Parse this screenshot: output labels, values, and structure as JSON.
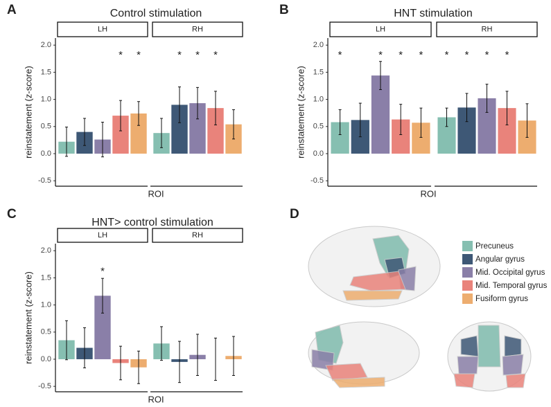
{
  "chart_data": [
    {
      "type": "bar",
      "panel": "A",
      "title": "Control stimulation",
      "ylabel": "reinstatement (z-score)",
      "xlabel": "ROI",
      "ylim": [
        -0.6,
        2.13
      ],
      "yticks": [
        -0.5,
        {
          "value": 0,
          "label": "0.0"
        },
        0.5,
        {
          "value": 1,
          "label": "1.0"
        },
        1.5,
        {
          "value": 2,
          "label": "2.0"
        }
      ],
      "facets": [
        {
          "name": "LH",
          "values": [
            0.22,
            0.4,
            0.26,
            0.7,
            0.74
          ],
          "errors": [
            0.27,
            0.25,
            0.32,
            0.28,
            0.22
          ],
          "stars": [
            null,
            null,
            null,
            "*",
            "*"
          ]
        },
        {
          "name": "RH",
          "values": [
            0.38,
            0.9,
            0.93,
            0.84,
            0.54
          ],
          "errors": [
            0.27,
            0.33,
            0.29,
            0.31,
            0.27
          ],
          "stars": [
            null,
            "*",
            "*",
            "*",
            null
          ]
        }
      ]
    },
    {
      "type": "bar",
      "panel": "B",
      "title": "HNT stimulation",
      "ylabel": "reinstatement (z-score)",
      "xlabel": "ROI",
      "ylim": [
        -0.6,
        2.13
      ],
      "yticks": [
        -0.5,
        {
          "value": 0,
          "label": "0.0"
        },
        0.5,
        {
          "value": 1,
          "label": "1.0"
        },
        1.5,
        {
          "value": 2,
          "label": "2.0"
        }
      ],
      "facets": [
        {
          "name": "LH",
          "values": [
            0.58,
            0.62,
            1.44,
            0.63,
            0.57
          ],
          "errors": [
            0.23,
            0.31,
            0.26,
            0.28,
            0.27
          ],
          "stars": [
            "*",
            null,
            "*",
            "*",
            "*"
          ]
        },
        {
          "name": "RH",
          "values": [
            0.67,
            0.85,
            1.02,
            0.84,
            0.61
          ],
          "errors": [
            0.17,
            0.26,
            0.26,
            0.31,
            0.31
          ],
          "stars": [
            "*",
            "*",
            "*",
            "*",
            null
          ]
        }
      ]
    },
    {
      "type": "bar",
      "panel": "C",
      "title": "HNT> control stimulation",
      "ylabel": "reinstatement (z-score)",
      "xlabel": "ROI",
      "ylim": [
        -0.6,
        2.13
      ],
      "yticks": [
        -0.5,
        {
          "value": 0,
          "label": "0.0"
        },
        0.5,
        {
          "value": 1,
          "label": "1.0"
        },
        1.5,
        {
          "value": 2,
          "label": "2.0"
        }
      ],
      "facets": [
        {
          "name": "LH",
          "values": [
            0.35,
            0.21,
            1.17,
            -0.07,
            -0.15
          ],
          "errors": [
            0.36,
            0.37,
            0.32,
            0.31,
            0.3
          ],
          "stars": [
            null,
            null,
            "*",
            null,
            null
          ]
        },
        {
          "name": "RH",
          "values": [
            0.29,
            -0.05,
            0.08,
            0.0,
            0.06
          ],
          "errors": [
            0.31,
            0.38,
            0.38,
            0.39,
            0.36
          ],
          "stars": [
            null,
            null,
            null,
            null,
            null
          ]
        }
      ]
    }
  ],
  "legend": {
    "panel": "D",
    "items": [
      {
        "label": "Precuneus",
        "color": "#86bfb1"
      },
      {
        "label": "Angular gyrus",
        "color": "#3e5876"
      },
      {
        "label": "Mid. Occipital gyrus",
        "color": "#8a7fa8"
      },
      {
        "label": "Mid. Temporal gyrus",
        "color": "#e9837b"
      },
      {
        "label": "Fusiform gyrus",
        "color": "#edad6f"
      }
    ]
  }
}
